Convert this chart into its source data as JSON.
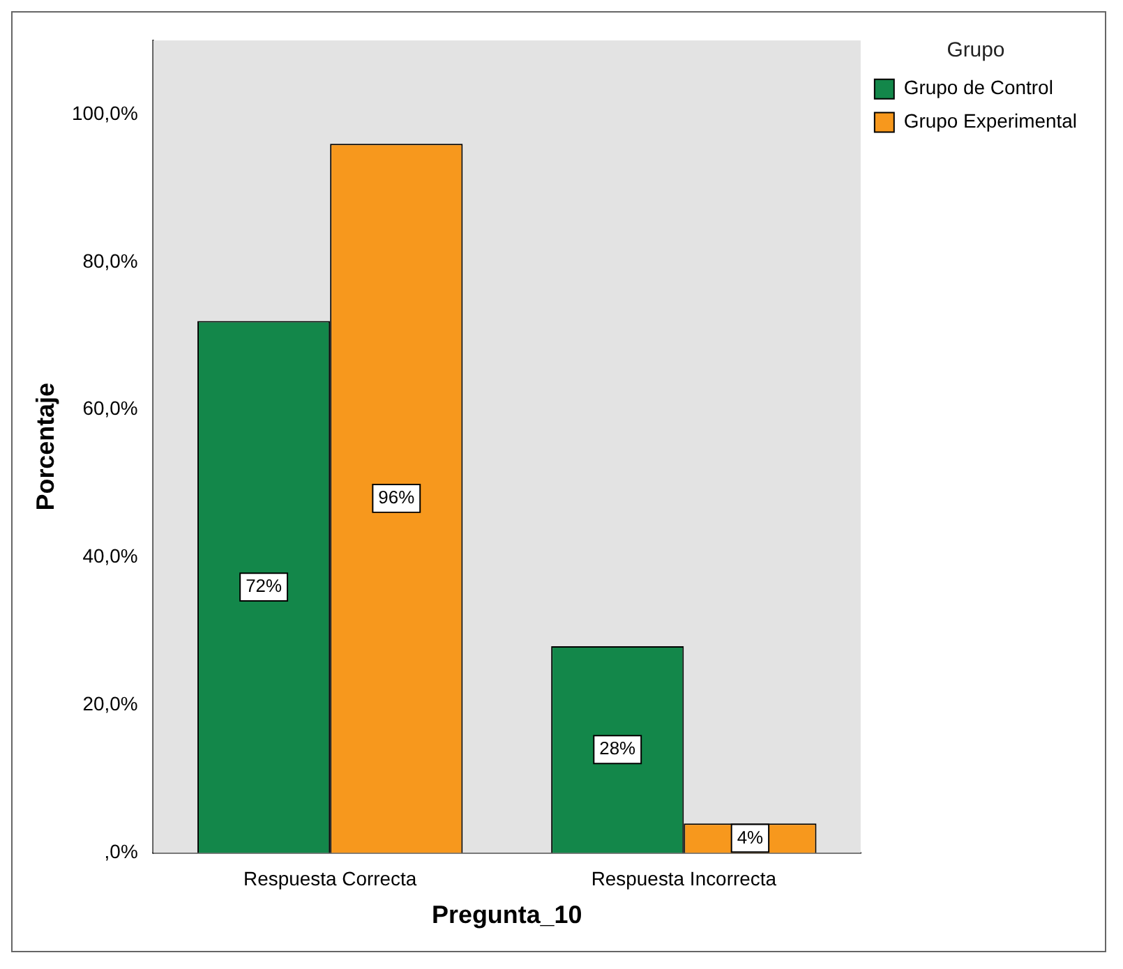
{
  "chart_data": {
    "type": "bar",
    "xlabel": "Pregunta_10",
    "ylabel": "Porcentaje",
    "legend_title": "Grupo",
    "legend": "top right",
    "categories": [
      "Respuesta Correcta",
      "Respuesta Incorrecta"
    ],
    "series": [
      {
        "name": "Grupo de Control",
        "color": "#13874a",
        "values": [
          72,
          28
        ],
        "value_labels": [
          "72%",
          "28%"
        ]
      },
      {
        "name": "Grupo Experimental",
        "color": "#f7981d",
        "values": [
          96,
          4
        ],
        "value_labels": [
          "96%",
          "4%"
        ]
      }
    ],
    "ylim": [
      0,
      110
    ],
    "yticks": [
      {
        "value": 0,
        "label": ",0%"
      },
      {
        "value": 20,
        "label": "20,0%"
      },
      {
        "value": 40,
        "label": "40,0%"
      },
      {
        "value": 60,
        "label": "60,0%"
      },
      {
        "value": 80,
        "label": "80,0%"
      },
      {
        "value": 100,
        "label": "100,0%"
      }
    ],
    "grid": false
  }
}
